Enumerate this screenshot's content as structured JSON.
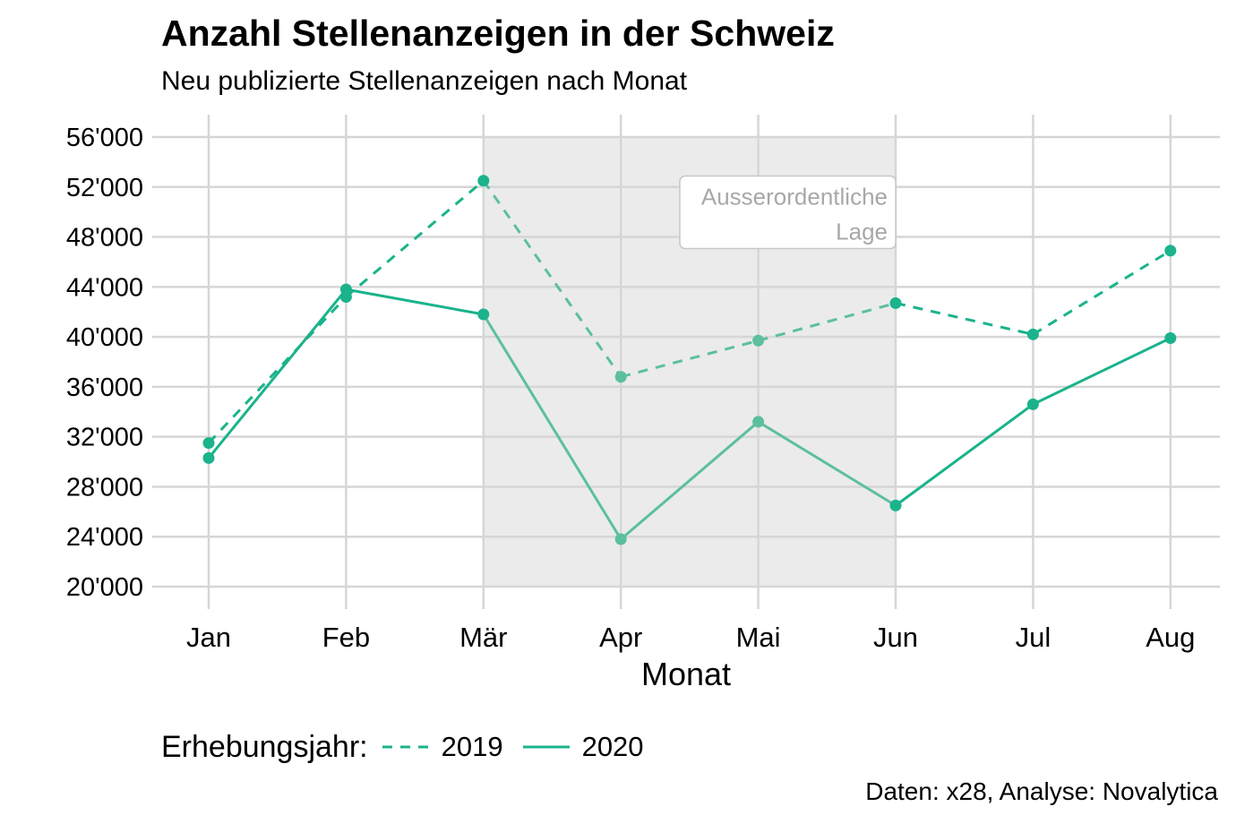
{
  "title": "Anzahl Stellenanzeigen in der Schweiz",
  "subtitle": "Neu publizierte Stellenanzeigen nach Monat",
  "caption": "Daten: x28, Analyse: Novalytica",
  "colors": {
    "series": "#1ab38c",
    "series_muted": "#5cbf9f",
    "shade": "#ebebeb",
    "grid": "#d6d6d6",
    "annotation_text": "#a8a8a8",
    "annotation_border": "#c8c8c8"
  },
  "legend": {
    "title": "Erhebungsjahr:",
    "items": [
      {
        "label": "2019",
        "dash": "dashed"
      },
      {
        "label": "2020",
        "dash": "solid"
      }
    ]
  },
  "chart_data": {
    "type": "line",
    "categories": [
      "Jan",
      "Feb",
      "Mär",
      "Apr",
      "Mai",
      "Jun",
      "Jul",
      "Aug"
    ],
    "series": [
      {
        "name": "2019",
        "dash": "dashed",
        "values": [
          31500,
          43200,
          52500,
          36800,
          39700,
          42700,
          40200,
          46900
        ]
      },
      {
        "name": "2020",
        "dash": "solid",
        "values": [
          30300,
          43800,
          41800,
          23800,
          33200,
          26500,
          34600,
          39900
        ]
      }
    ],
    "xlabel": "Monat",
    "ylabel": "",
    "ylim": [
      20000,
      56000
    ],
    "yticks": [
      20000,
      24000,
      28000,
      32000,
      36000,
      40000,
      44000,
      48000,
      52000,
      56000
    ],
    "ytick_labels": [
      "20'000",
      "24'000",
      "28'000",
      "32'000",
      "36'000",
      "40'000",
      "44'000",
      "48'000",
      "52'000",
      "56'000"
    ],
    "shaded_region": {
      "from": "Mär",
      "to": "Jun"
    },
    "annotation": {
      "lines": [
        "Ausserordentliche",
        "Lage"
      ],
      "anchor": "Jun",
      "y": 48000
    },
    "grid": true,
    "legend_position": "bottom"
  }
}
